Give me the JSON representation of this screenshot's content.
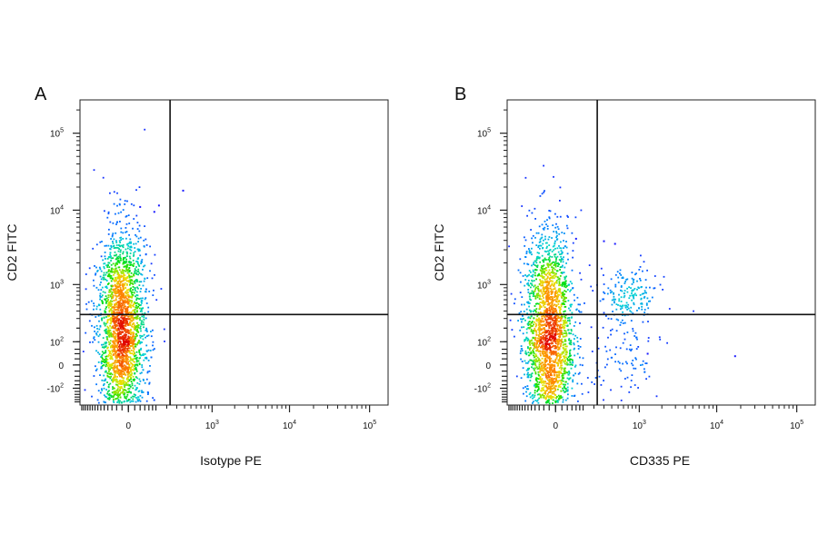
{
  "chart_data": [
    {
      "type": "scatter",
      "panel_label": "A",
      "title": "",
      "xlabel": "Isotype PE",
      "ylabel": "CD2 FITC",
      "x_scale": "biexponential",
      "y_scale": "biexponential",
      "x_ticks": [
        {
          "value": 0,
          "base": "0",
          "exp": ""
        },
        {
          "value": 1000,
          "base": "10",
          "exp": "3"
        },
        {
          "value": 10000,
          "base": "10",
          "exp": "4"
        },
        {
          "value": 100000,
          "base": "10",
          "exp": "5"
        }
      ],
      "y_ticks": [
        {
          "value": 100000,
          "base": "10",
          "exp": "5"
        },
        {
          "value": 10000,
          "base": "10",
          "exp": "4"
        },
        {
          "value": 1000,
          "base": "10",
          "exp": "3"
        },
        {
          "value": 100,
          "base": "10",
          "exp": "2"
        },
        {
          "value": 0,
          "base": "0",
          "exp": ""
        },
        {
          "value": -100,
          "base": "-10",
          "exp": "2"
        }
      ],
      "gate": {
        "x": 230,
        "y": 350
      },
      "populations": [
        {
          "x": -20,
          "y": 80,
          "spread_x": 0.07,
          "spread_y": 0.28,
          "share": 0.78
        },
        {
          "x": -20,
          "y": 900,
          "spread_x": 0.07,
          "spread_y": 0.22,
          "share": 0.2
        }
      ],
      "outliers": [
        {
          "x": 40,
          "y": 11000
        },
        {
          "x": 140,
          "y": 11500
        },
        {
          "x": 110,
          "y": 9500
        },
        {
          "x": 380,
          "y": 18000
        }
      ],
      "density_colormap": [
        "#1a1aff",
        "#0080ff",
        "#00d2d2",
        "#00e000",
        "#e6e600",
        "#ff8c00",
        "#e00000"
      ]
    },
    {
      "type": "scatter",
      "panel_label": "B",
      "title": "",
      "xlabel": "CD335 PE",
      "ylabel": "CD2 FITC",
      "x_scale": "biexponential",
      "y_scale": "biexponential",
      "x_ticks": [
        {
          "value": 0,
          "base": "0",
          "exp": ""
        },
        {
          "value": 1000,
          "base": "10",
          "exp": "3"
        },
        {
          "value": 10000,
          "base": "10",
          "exp": "4"
        },
        {
          "value": 100000,
          "base": "10",
          "exp": "5"
        }
      ],
      "y_ticks": [
        {
          "value": 100000,
          "base": "10",
          "exp": "5"
        },
        {
          "value": 10000,
          "base": "10",
          "exp": "4"
        },
        {
          "value": 1000,
          "base": "10",
          "exp": "3"
        },
        {
          "value": 100,
          "base": "10",
          "exp": "2"
        },
        {
          "value": 0,
          "base": "0",
          "exp": ""
        },
        {
          "value": -100,
          "base": "-10",
          "exp": "2"
        }
      ],
      "gate": {
        "x": 230,
        "y": 350
      },
      "populations": [
        {
          "x": -20,
          "y": 80,
          "spread_x": 0.07,
          "spread_y": 0.28,
          "share": 0.72
        },
        {
          "x": -20,
          "y": 900,
          "spread_x": 0.08,
          "spread_y": 0.22,
          "share": 0.17
        },
        {
          "x": 700,
          "y": 650,
          "spread_x": 0.09,
          "spread_y": 0.09,
          "share": 0.07
        },
        {
          "x": 600,
          "y": 15,
          "spread_x": 0.11,
          "spread_y": 0.18,
          "share": 0.04
        }
      ],
      "outliers": [
        {
          "x": 80,
          "y": 4200
        },
        {
          "x": 300,
          "y": 3900
        },
        {
          "x": 450,
          "y": 3600
        },
        {
          "x": 1300,
          "y": 40
        },
        {
          "x": 17000,
          "y": 30
        }
      ],
      "density_colormap": [
        "#1a1aff",
        "#0080ff",
        "#00d2d2",
        "#00e000",
        "#e6e600",
        "#ff8c00",
        "#e00000"
      ]
    }
  ]
}
